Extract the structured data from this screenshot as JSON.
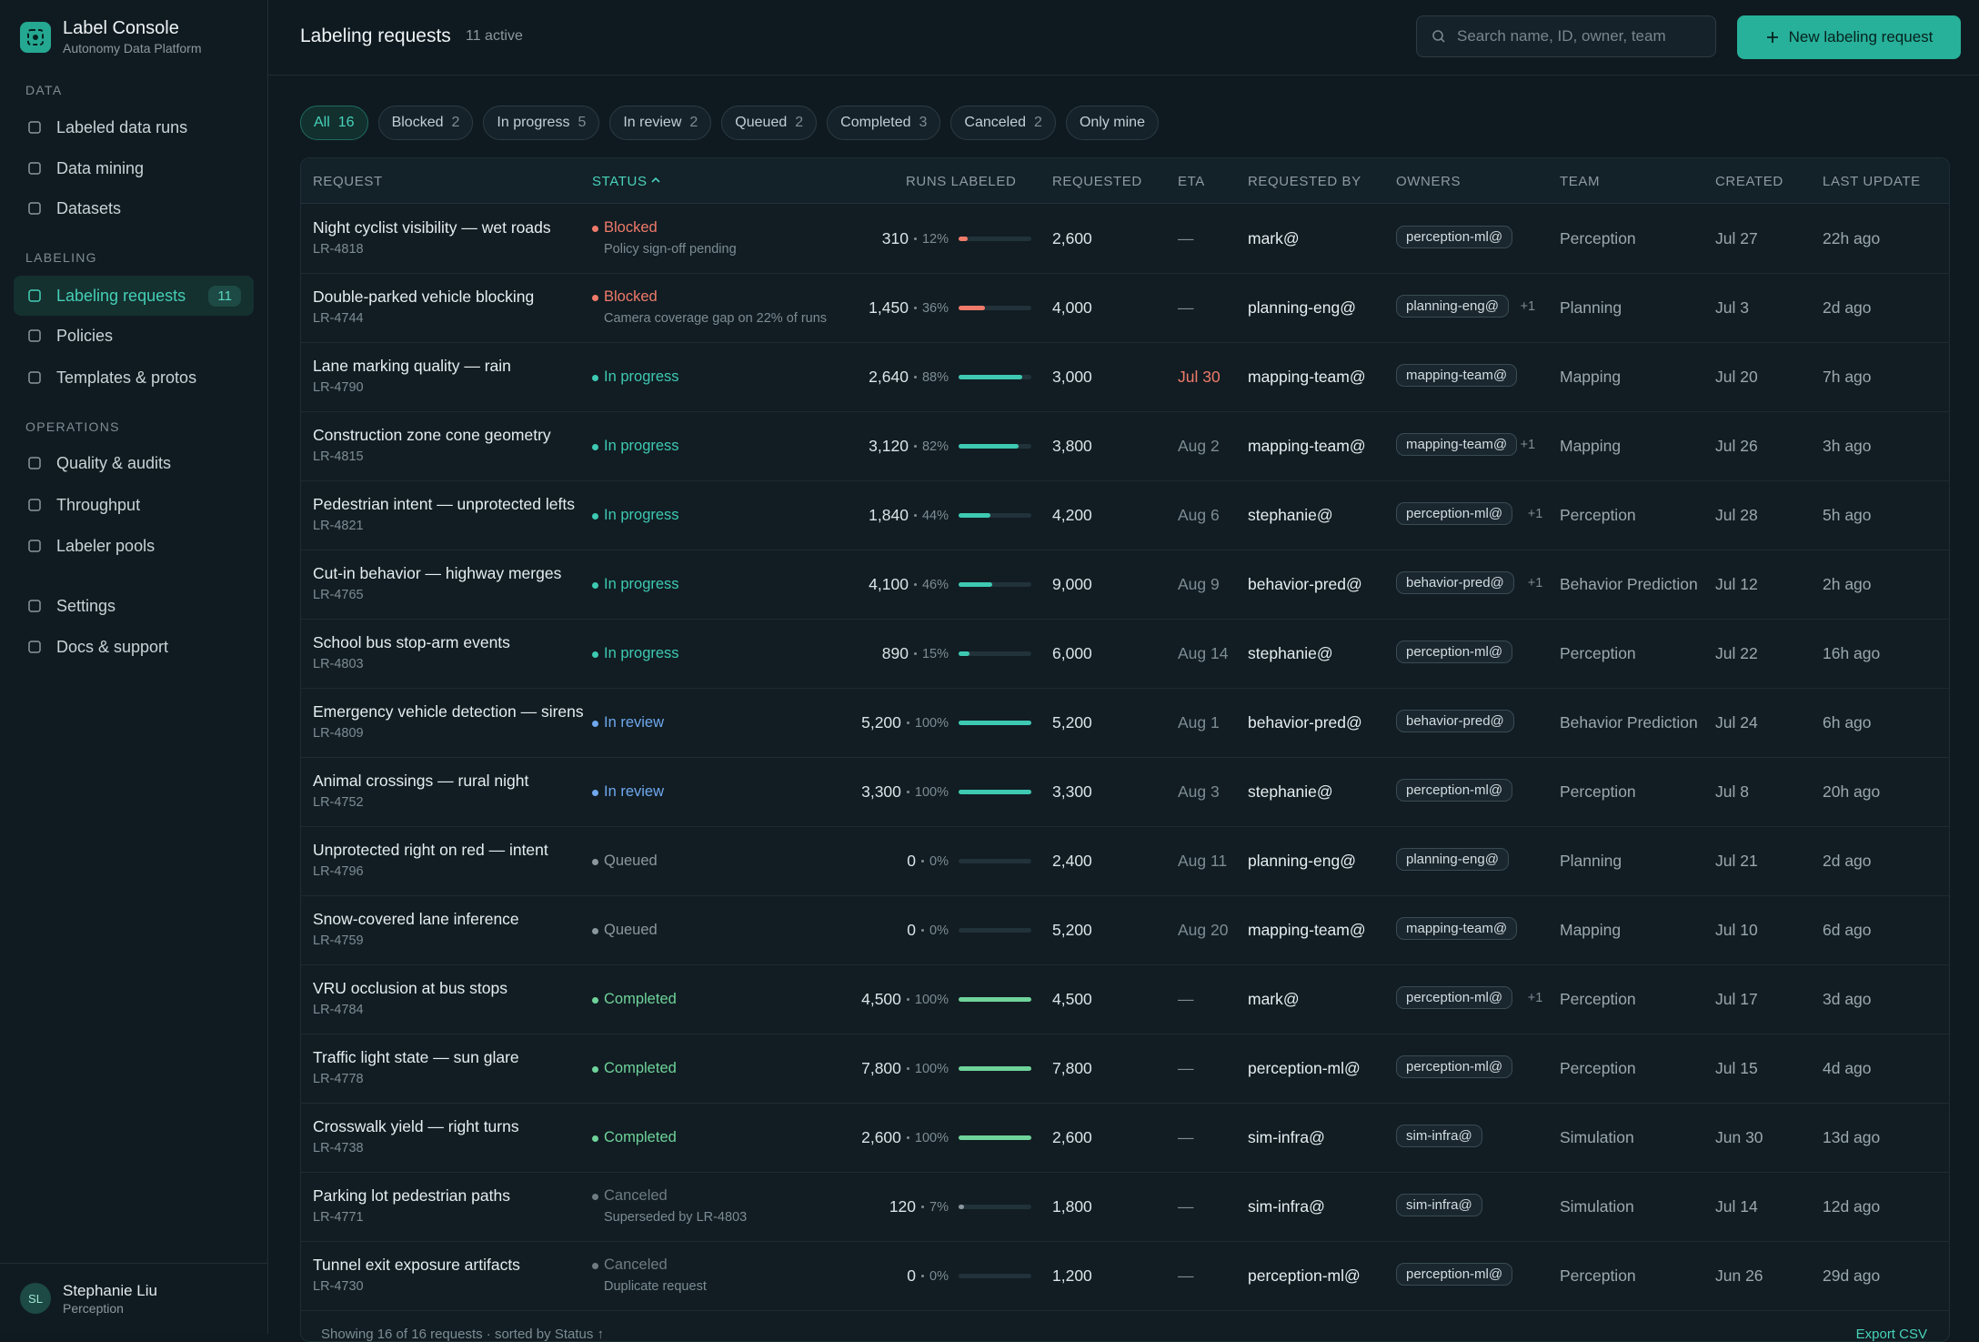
{
  "sidebar": {
    "brand": {
      "title": "Label Console",
      "subtitle": "Autonomy Data Platform"
    },
    "sections": [
      {
        "label": "DATA",
        "items": [
          "Labeled data runs",
          "Data mining",
          "Datasets"
        ]
      },
      {
        "label": "LABELING",
        "items": [
          "Labeling requests",
          "Policies",
          "Templates & protos"
        ],
        "active_badge": "11"
      },
      {
        "label": "OPERATIONS",
        "items": [
          "Quality & audits",
          "Throughput",
          "Labeler pools"
        ]
      }
    ],
    "footer_items": [
      "Settings",
      "Docs & support"
    ],
    "user": {
      "initials": "SL",
      "name": "Stephanie Liu",
      "team": "Perception"
    }
  },
  "header": {
    "title": "Labeling requests",
    "subtitle": "11 active",
    "search_placeholder": "Search name, ID, owner, team",
    "button": "New labeling request"
  },
  "filters": [
    {
      "label": "All",
      "count": "16"
    },
    {
      "label": "Blocked",
      "count": "2"
    },
    {
      "label": "In progress",
      "count": "5"
    },
    {
      "label": "In review",
      "count": "2"
    },
    {
      "label": "Queued",
      "count": "2"
    },
    {
      "label": "Completed",
      "count": "3"
    },
    {
      "label": "Canceled",
      "count": "2"
    },
    {
      "label": "Only mine"
    }
  ],
  "table": {
    "columns": [
      "REQUEST",
      "STATUS",
      "RUNS LABELED",
      "REQUESTED",
      "ETA",
      "REQUESTED BY",
      "OWNERS",
      "TEAM",
      "CREATED",
      "LAST UPDATE"
    ],
    "rows": [
      {
        "name": "Night cyclist visibility — wet roads",
        "id": "LR-4818",
        "status": "Blocked",
        "note": "Policy sign-off pending",
        "color": "#f07a6a",
        "bar_color": "#f07a6a",
        "runs": "310",
        "progress": 12,
        "progress_label": "12%",
        "requested": "2,600",
        "eta": "—",
        "by": "mark@",
        "owner": "perception-ml@",
        "team": "Perception",
        "created": "Jul 27",
        "updated": "22h ago"
      },
      {
        "name": "Double-parked vehicle blocking",
        "id": "LR-4744",
        "status": "Blocked",
        "note": "Camera coverage gap on 22% of runs",
        "color": "#f07a6a",
        "bar_color": "#f07a6a",
        "runs": "1,450",
        "progress": 36,
        "progress_label": "36%",
        "requested": "4,000",
        "eta": "—",
        "by": "planning-eng@",
        "owner": "planning-eng@",
        "extra": "+1",
        "team": "Planning",
        "created": "Jul 3",
        "updated": "2d ago"
      },
      {
        "name": "Lane marking quality — rain",
        "id": "LR-4790",
        "status": "In progress",
        "color": "#3ec9b2",
        "bar_color": "#3ec9b2",
        "runs": "2,640",
        "progress": 88,
        "progress_label": "88%",
        "requested": "3,000",
        "eta": "Jul 30",
        "eta_color": "#f07a6a",
        "by": "mapping-team@",
        "owner": "mapping-team@",
        "team": "Mapping",
        "created": "Jul 20",
        "updated": "7h ago"
      },
      {
        "name": "Construction zone cone geometry",
        "id": "LR-4815",
        "status": "In progress",
        "color": "#3ec9b2",
        "bar_color": "#3ec9b2",
        "runs": "3,120",
        "progress": 82,
        "progress_label": "82%",
        "requested": "3,800",
        "eta": "Aug 2",
        "by": "mapping-team@",
        "owner": "mapping-team@",
        "extra": "+1",
        "team": "Mapping",
        "created": "Jul 26",
        "updated": "3h ago"
      },
      {
        "name": "Pedestrian intent — unprotected lefts",
        "id": "LR-4821",
        "status": "In progress",
        "color": "#3ec9b2",
        "bar_color": "#3ec9b2",
        "runs": "1,840",
        "progress": 44,
        "progress_label": "44%",
        "requested": "4,200",
        "eta": "Aug 6",
        "by": "stephanie@",
        "owner": "perception-ml@",
        "extra": "+1",
        "team": "Perception",
        "created": "Jul 28",
        "updated": "5h ago"
      },
      {
        "name": "Cut-in behavior — highway merges",
        "id": "LR-4765",
        "status": "In progress",
        "color": "#3ec9b2",
        "bar_color": "#3ec9b2",
        "runs": "4,100",
        "progress": 46,
        "progress_label": "46%",
        "requested": "9,000",
        "eta": "Aug 9",
        "by": "behavior-pred@",
        "owner": "behavior-pred@",
        "extra": "+1",
        "team": "Behavior Prediction",
        "created": "Jul 12",
        "updated": "2h ago"
      },
      {
        "name": "School bus stop-arm events",
        "id": "LR-4803",
        "status": "In progress",
        "color": "#3ec9b2",
        "bar_color": "#3ec9b2",
        "runs": "890",
        "progress": 15,
        "progress_label": "15%",
        "requested": "6,000",
        "eta": "Aug 14",
        "by": "stephanie@",
        "owner": "perception-ml@",
        "team": "Perception",
        "created": "Jul 22",
        "updated": "16h ago"
      },
      {
        "name": "Emergency vehicle detection — sirens",
        "id": "LR-4809",
        "status": "In review",
        "color": "#6fa8ee",
        "bar_color": "#3ec9b2",
        "runs": "5,200",
        "progress": 100,
        "progress_label": "100%",
        "requested": "5,200",
        "eta": "Aug 1",
        "by": "behavior-pred@",
        "owner": "behavior-pred@",
        "team": "Behavior Prediction",
        "created": "Jul 24",
        "updated": "6h ago"
      },
      {
        "name": "Animal crossings — rural night",
        "id": "LR-4752",
        "status": "In review",
        "color": "#6fa8ee",
        "bar_color": "#3ec9b2",
        "runs": "3,300",
        "progress": 100,
        "progress_label": "100%",
        "requested": "3,300",
        "eta": "Aug 3",
        "by": "stephanie@",
        "owner": "perception-ml@",
        "team": "Perception",
        "created": "Jul 8",
        "updated": "20h ago"
      },
      {
        "name": "Unprotected right on red — intent",
        "id": "LR-4796",
        "status": "Queued",
        "color": "#8a979d",
        "bar_color": "#8a979d",
        "runs": "0",
        "progress": 0,
        "progress_label": "0%",
        "requested": "2,400",
        "eta": "Aug 11",
        "by": "planning-eng@",
        "owner": "planning-eng@",
        "team": "Planning",
        "created": "Jul 21",
        "updated": "2d ago"
      },
      {
        "name": "Snow-covered lane inference",
        "id": "LR-4759",
        "status": "Queued",
        "color": "#8a979d",
        "bar_color": "#8a979d",
        "runs": "0",
        "progress": 0,
        "progress_label": "0%",
        "requested": "5,200",
        "eta": "Aug 20",
        "by": "mapping-team@",
        "owner": "mapping-team@",
        "team": "Mapping",
        "created": "Jul 10",
        "updated": "6d ago"
      },
      {
        "name": "VRU occlusion at bus stops",
        "id": "LR-4784",
        "status": "Completed",
        "color": "#6fd39a",
        "bar_color": "#6fd39a",
        "runs": "4,500",
        "progress": 100,
        "progress_label": "100%",
        "requested": "4,500",
        "eta": "—",
        "by": "mark@",
        "owner": "perception-ml@",
        "extra": "+1",
        "team": "Perception",
        "created": "Jul 17",
        "updated": "3d ago"
      },
      {
        "name": "Traffic light state — sun glare",
        "id": "LR-4778",
        "status": "Completed",
        "color": "#6fd39a",
        "bar_color": "#6fd39a",
        "runs": "7,800",
        "progress": 100,
        "progress_label": "100%",
        "requested": "7,800",
        "eta": "—",
        "by": "perception-ml@",
        "owner": "perception-ml@",
        "team": "Perception",
        "created": "Jul 15",
        "updated": "4d ago"
      },
      {
        "name": "Crosswalk yield — right turns",
        "id": "LR-4738",
        "status": "Completed",
        "color": "#6fd39a",
        "bar_color": "#6fd39a",
        "runs": "2,600",
        "progress": 100,
        "progress_label": "100%",
        "requested": "2,600",
        "eta": "—",
        "by": "sim-infra@",
        "owner": "sim-infra@",
        "team": "Simulation",
        "created": "Jun 30",
        "updated": "13d ago"
      },
      {
        "name": "Parking lot pedestrian paths",
        "id": "LR-4771",
        "status": "Canceled",
        "note": "Superseded by LR-4803",
        "color": "#6e7c82",
        "bar_color": "#8a979d",
        "runs": "120",
        "progress": 7,
        "progress_label": "7%",
        "requested": "1,800",
        "eta": "—",
        "by": "sim-infra@",
        "owner": "sim-infra@",
        "team": "Simulation",
        "created": "Jul 14",
        "updated": "12d ago"
      },
      {
        "name": "Tunnel exit exposure artifacts",
        "id": "LR-4730",
        "status": "Canceled",
        "note": "Duplicate request",
        "color": "#6e7c82",
        "bar_color": "#8a979d",
        "runs": "0",
        "progress": 0,
        "progress_label": "0%",
        "requested": "1,200",
        "eta": "—",
        "by": "perception-ml@",
        "owner": "perception-ml@",
        "team": "Perception",
        "created": "Jun 26",
        "updated": "29d ago"
      }
    ],
    "footer": {
      "summary": "Showing 16 of 16 requests · sorted by Status ↑",
      "export": "Export CSV"
    }
  }
}
